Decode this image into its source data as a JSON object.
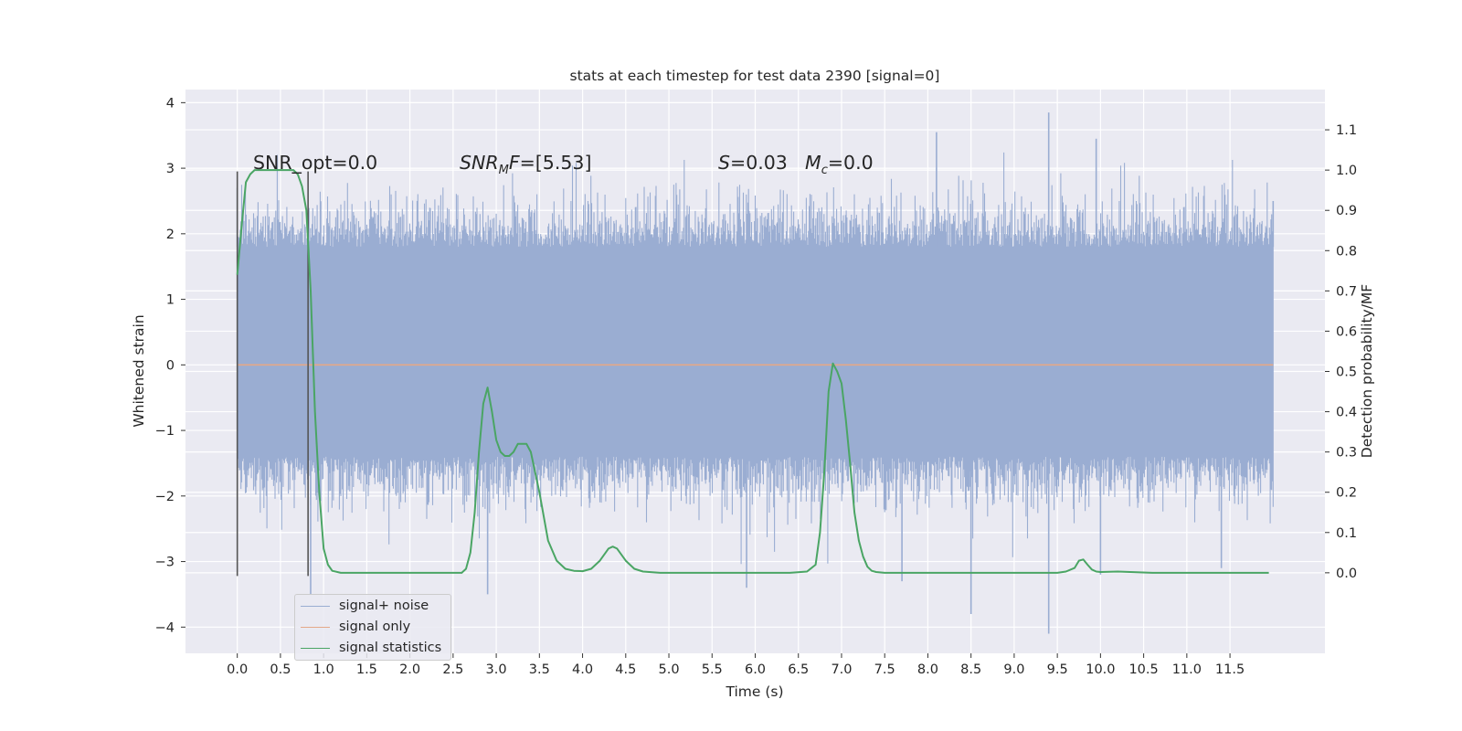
{
  "chart_data": {
    "type": "line",
    "title": "stats at each timestep for test data 2390 [signal=0]",
    "xlabel": "Time (s)",
    "ylabel": "Whitened strain",
    "y2label": "Detection probability/MF",
    "xlim": [
      -0.6,
      12.6
    ],
    "ylim": [
      -4.4,
      4.2
    ],
    "y2lim": [
      -0.2,
      1.2
    ],
    "x_ticks": [
      "0.0",
      "0.5",
      "1.0",
      "1.5",
      "2.0",
      "2.5",
      "3.0",
      "3.5",
      "4.0",
      "4.5",
      "5.0",
      "5.5",
      "6.0",
      "6.5",
      "7.0",
      "7.5",
      "8.0",
      "8.5",
      "9.0",
      "9.5",
      "10.0",
      "10.5",
      "11.0",
      "11.5"
    ],
    "y_ticks": [
      "4",
      "3",
      "2",
      "1",
      "0",
      "−1",
      "−2",
      "−3",
      "−4"
    ],
    "y2_ticks": [
      "1.1",
      "1.0",
      "0.9",
      "0.8",
      "0.7",
      "0.6",
      "0.5",
      "0.4",
      "0.3",
      "0.2",
      "0.1",
      "0.0"
    ],
    "grid": true,
    "legend_position": "lower-left",
    "annotations": {
      "snr_opt": "SNR_opt=0.0",
      "snr_mf": "[5.53]",
      "s_value": "=0.03",
      "mc_value": "=0.0"
    },
    "colors": {
      "noise": "#9aadd2",
      "signal_only": "#e4a888",
      "statistics": "#4aa564",
      "background": "#eaeaf2",
      "vline": "#555555"
    },
    "series": [
      {
        "name": "signal+ noise",
        "axis": "left",
        "style": "dense noise",
        "x_range": [
          0.0,
          12.0
        ],
        "band": [
          -1.4,
          1.8
        ],
        "extremes": [
          {
            "x": 0.0,
            "y": 2.7
          },
          {
            "x": 0.03,
            "y": -1.6
          },
          {
            "x": 0.85,
            "y": -3.5
          },
          {
            "x": 2.9,
            "y": -3.5
          },
          {
            "x": 5.9,
            "y": -3.4
          },
          {
            "x": 7.7,
            "y": -3.3
          },
          {
            "x": 8.1,
            "y": 3.55
          },
          {
            "x": 8.5,
            "y": -3.8
          },
          {
            "x": 9.4,
            "y": 3.85
          },
          {
            "x": 9.4,
            "y": -4.1
          },
          {
            "x": 9.95,
            "y": 3.45
          },
          {
            "x": 10.0,
            "y": -3.2
          },
          {
            "x": 11.4,
            "y": -3.1
          },
          {
            "x": 12.0,
            "y": 2.5
          }
        ]
      },
      {
        "name": "signal only",
        "axis": "left",
        "x": [
          0.0,
          12.0
        ],
        "y": [
          0.0,
          0.0
        ]
      },
      {
        "name": "signal statistics",
        "axis": "right",
        "x": [
          0.0,
          0.05,
          0.1,
          0.15,
          0.2,
          0.3,
          0.4,
          0.5,
          0.6,
          0.65,
          0.7,
          0.75,
          0.8,
          0.85,
          0.9,
          0.95,
          1.0,
          1.05,
          1.1,
          1.2,
          1.4,
          1.7,
          2.0,
          2.3,
          2.5,
          2.6,
          2.65,
          2.7,
          2.75,
          2.8,
          2.85,
          2.9,
          2.95,
          3.0,
          3.05,
          3.1,
          3.15,
          3.2,
          3.25,
          3.3,
          3.35,
          3.4,
          3.5,
          3.6,
          3.7,
          3.8,
          3.9,
          4.0,
          4.1,
          4.2,
          4.3,
          4.35,
          4.4,
          4.5,
          4.6,
          4.7,
          4.9,
          5.2,
          5.6,
          6.0,
          6.4,
          6.6,
          6.7,
          6.75,
          6.8,
          6.85,
          6.9,
          6.95,
          7.0,
          7.05,
          7.1,
          7.15,
          7.2,
          7.25,
          7.3,
          7.35,
          7.4,
          7.5,
          7.7,
          8.0,
          8.5,
          9.0,
          9.5,
          9.6,
          9.7,
          9.75,
          9.8,
          9.85,
          9.9,
          9.95,
          10.0,
          10.2,
          10.6,
          11.0,
          11.5,
          11.95
        ],
        "y": [
          0.74,
          0.86,
          0.97,
          0.99,
          1.0,
          1.0,
          1.0,
          1.0,
          1.0,
          1.0,
          0.99,
          0.96,
          0.9,
          0.7,
          0.4,
          0.2,
          0.06,
          0.02,
          0.005,
          0.0,
          0.0,
          0.0,
          0.0,
          0.0,
          0.0,
          0.0,
          0.01,
          0.05,
          0.15,
          0.3,
          0.42,
          0.46,
          0.4,
          0.33,
          0.3,
          0.29,
          0.29,
          0.3,
          0.32,
          0.32,
          0.32,
          0.3,
          0.2,
          0.08,
          0.03,
          0.01,
          0.005,
          0.004,
          0.01,
          0.03,
          0.06,
          0.065,
          0.06,
          0.03,
          0.01,
          0.003,
          0.0,
          0.0,
          0.0,
          0.0,
          0.0,
          0.003,
          0.02,
          0.1,
          0.25,
          0.45,
          0.52,
          0.5,
          0.47,
          0.38,
          0.27,
          0.15,
          0.08,
          0.04,
          0.015,
          0.005,
          0.002,
          0.0,
          0.0,
          0.0,
          0.0,
          0.0,
          0.0,
          0.003,
          0.012,
          0.03,
          0.033,
          0.02,
          0.008,
          0.003,
          0.002,
          0.003,
          0.0,
          0.0,
          0.0,
          0.0
        ]
      }
    ],
    "vertical_lines": [
      0.0,
      0.82
    ]
  },
  "legend": {
    "items": [
      {
        "label": "signal+ noise",
        "color": "#9aadd2"
      },
      {
        "label": "signal only",
        "color": "#e4a888"
      },
      {
        "label": "signal statistics",
        "color": "#4aa564"
      }
    ]
  }
}
